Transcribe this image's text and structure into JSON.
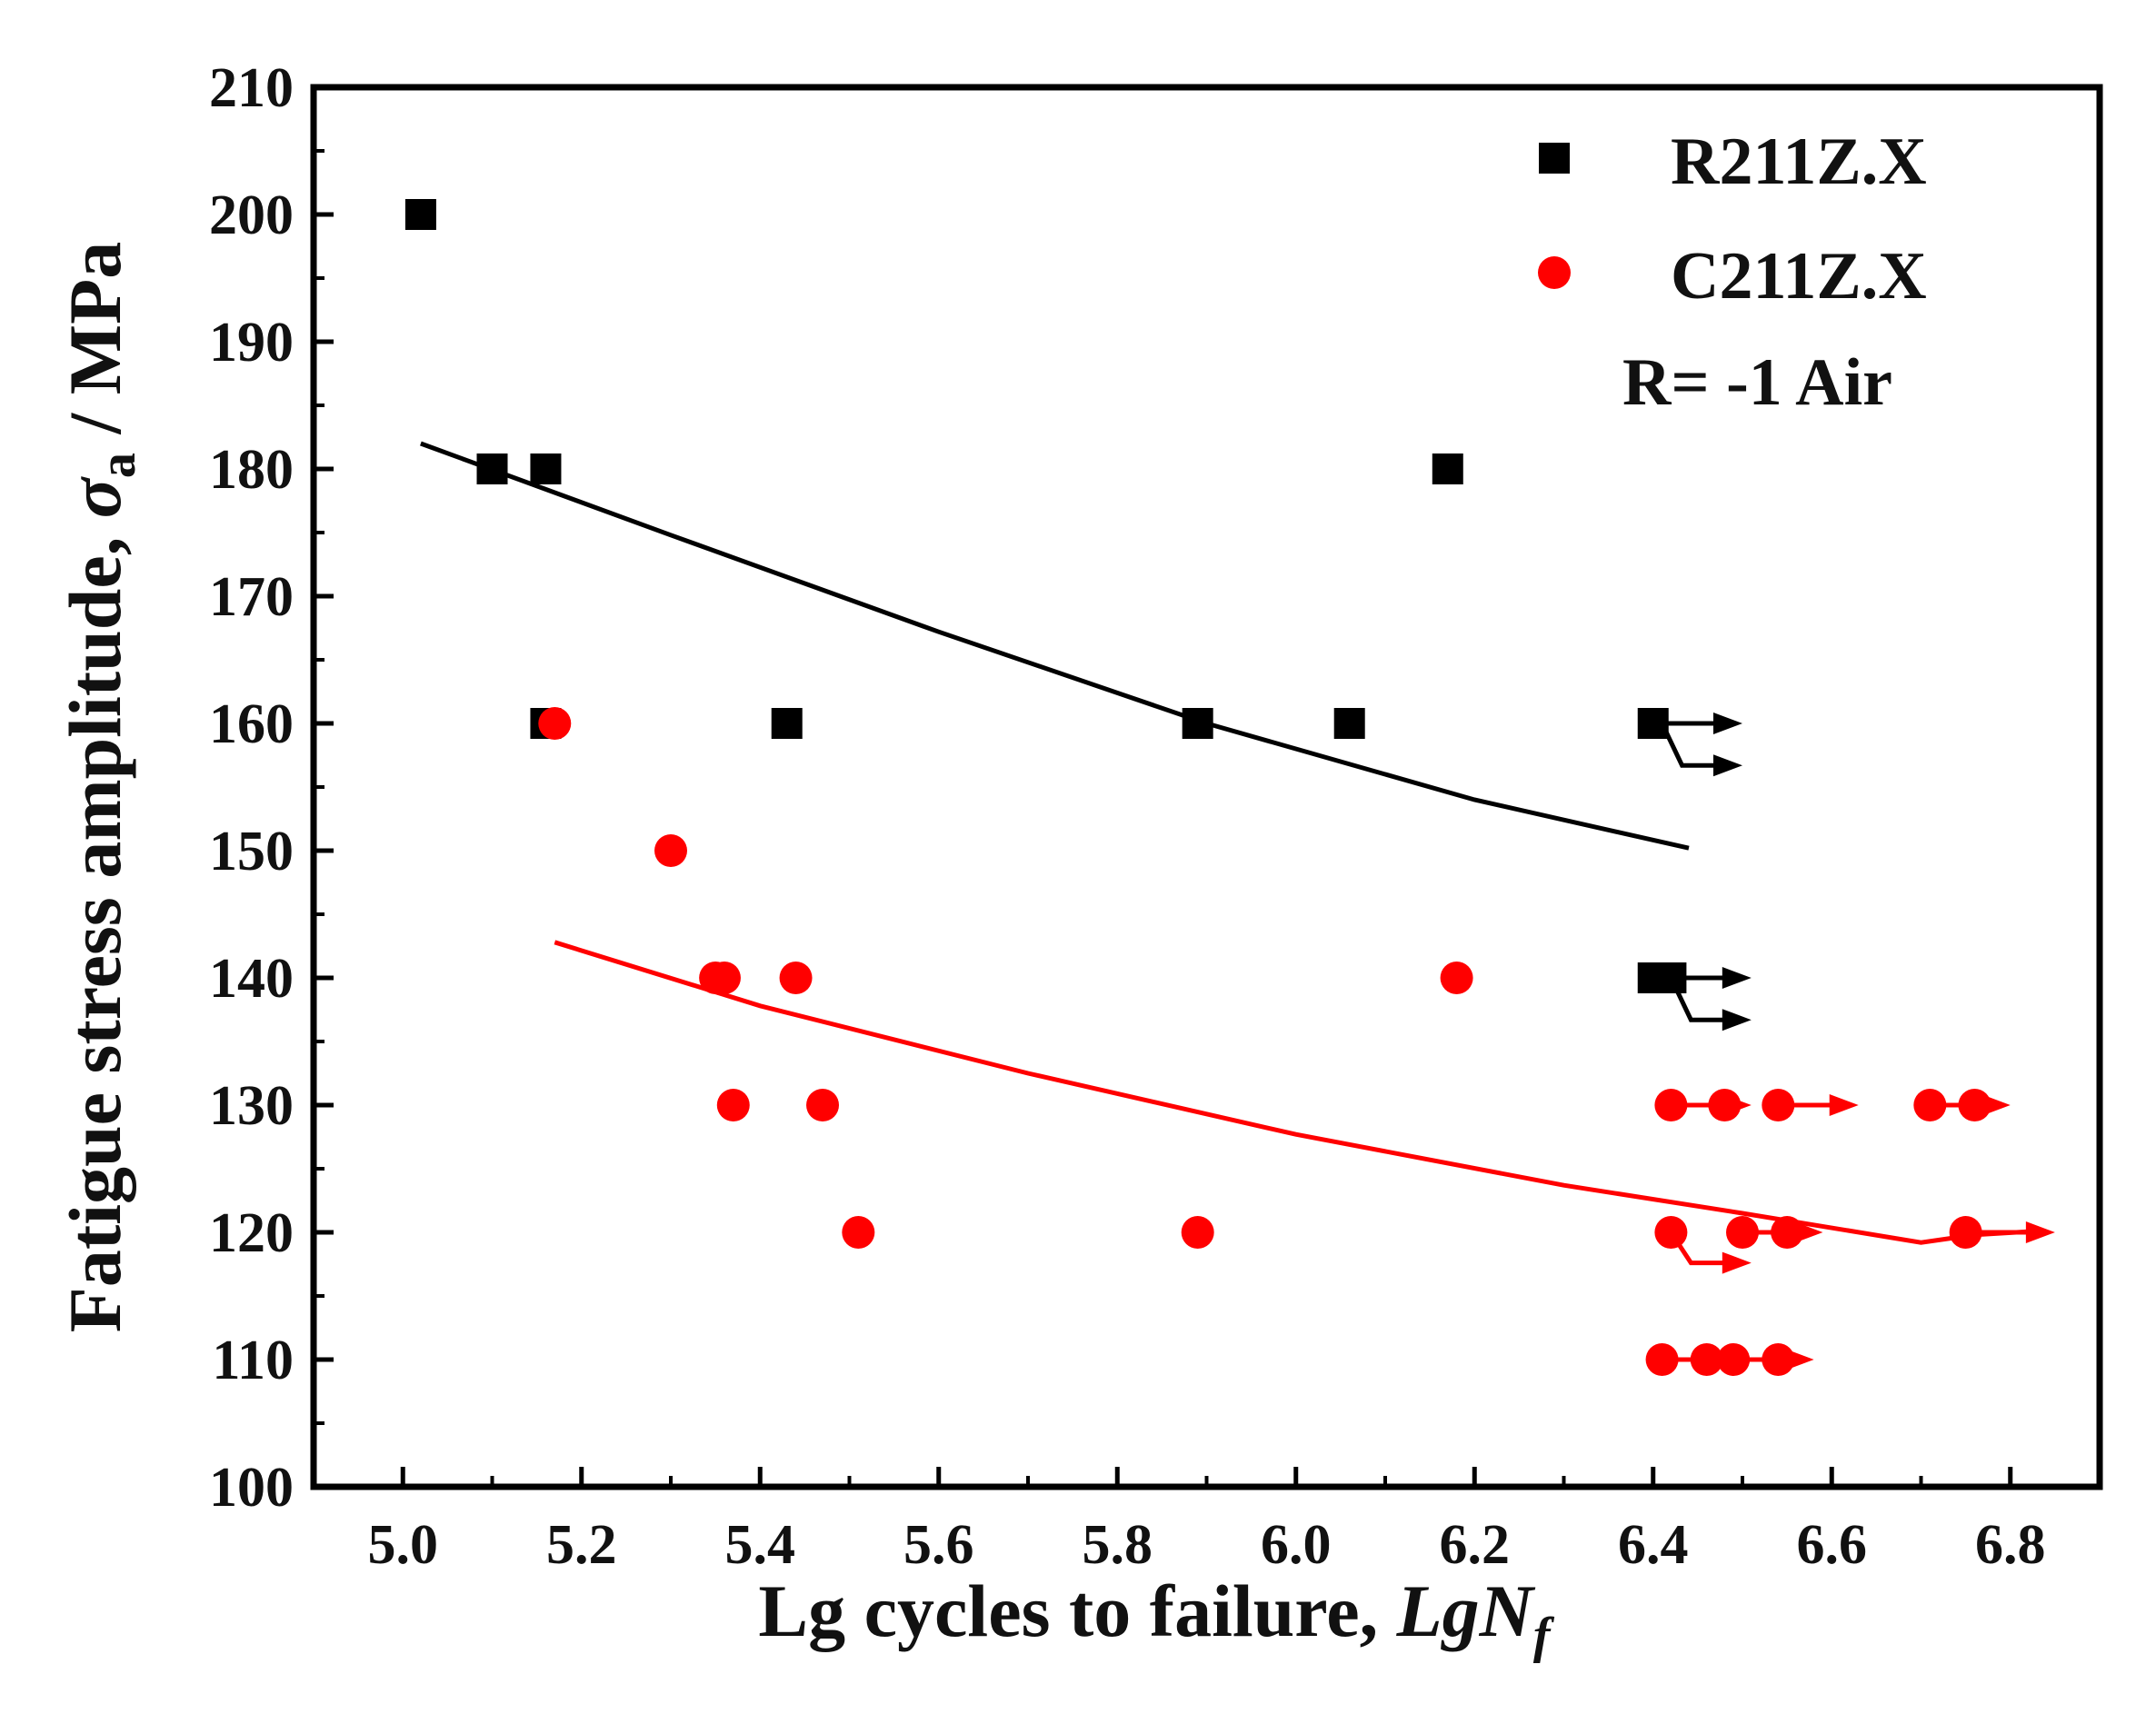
{
  "chart_data": {
    "type": "scatter",
    "xlim": [
      4.9,
      6.9
    ],
    "ylim": [
      100,
      210
    ],
    "x_ticks": [
      5.0,
      5.2,
      5.4,
      5.6,
      5.8,
      6.0,
      6.2,
      6.4,
      6.6,
      6.8
    ],
    "x_tick_labels": [
      "5.0",
      "5.2",
      "5.4",
      "5.6",
      "5.8",
      "6.0",
      "6.2",
      "6.4",
      "6.6",
      "6.8"
    ],
    "y_ticks": [
      100,
      110,
      120,
      130,
      140,
      150,
      160,
      170,
      180,
      190,
      200,
      210
    ],
    "y_tick_labels": [
      "100",
      "110",
      "120",
      "130",
      "140",
      "150",
      "160",
      "170",
      "180",
      "190",
      "200",
      "210"
    ],
    "xlabel": {
      "main": "Lg cycles to failure, ",
      "italic": "LgN",
      "sub": "f"
    },
    "ylabel": {
      "main": "Fatigue stress amplitude, ",
      "sym": "σ",
      "sub": "a",
      "tail": " / MPa"
    },
    "condition_label": "R= -1   Air",
    "grid": false,
    "legend_position": "top-right",
    "series": [
      {
        "name": "R211Z.X",
        "marker": "square",
        "color": "#000000",
        "points": [
          {
            "x": 5.02,
            "y": 200
          },
          {
            "x": 5.1,
            "y": 180
          },
          {
            "x": 5.16,
            "y": 180
          },
          {
            "x": 5.16,
            "y": 160
          },
          {
            "x": 5.43,
            "y": 160
          },
          {
            "x": 5.89,
            "y": 160
          },
          {
            "x": 6.06,
            "y": 160
          },
          {
            "x": 6.17,
            "y": 180
          },
          {
            "x": 6.4,
            "y": 160
          },
          {
            "x": 6.4,
            "y": 140
          },
          {
            "x": 6.42,
            "y": 140
          }
        ],
        "runouts": [
          {
            "x": 6.41,
            "y": 160,
            "x_end": 6.5,
            "y_end": 160
          },
          {
            "x": 6.41,
            "y": 160,
            "x_end": 6.5,
            "y_end": 156.7
          },
          {
            "x": 6.41,
            "y": 140,
            "x_end": 6.51,
            "y_end": 140
          },
          {
            "x": 6.42,
            "y": 140,
            "x_end": 6.51,
            "y_end": 136.7
          }
        ],
        "fit": {
          "x": [
            5.02,
            5.3,
            5.6,
            5.9,
            6.2,
            6.44
          ],
          "y": [
            182,
            174.8,
            167.2,
            160,
            154,
            150.2
          ]
        }
      },
      {
        "name": "C211Z.X",
        "marker": "circle",
        "color": "#ff0000",
        "points": [
          {
            "x": 5.17,
            "y": 160
          },
          {
            "x": 5.3,
            "y": 150
          },
          {
            "x": 5.35,
            "y": 140
          },
          {
            "x": 5.36,
            "y": 140
          },
          {
            "x": 5.44,
            "y": 140
          },
          {
            "x": 5.37,
            "y": 130
          },
          {
            "x": 5.47,
            "y": 130
          },
          {
            "x": 5.51,
            "y": 120
          },
          {
            "x": 5.89,
            "y": 120
          },
          {
            "x": 6.18,
            "y": 140
          },
          {
            "x": 6.42,
            "y": 130
          },
          {
            "x": 6.48,
            "y": 130
          },
          {
            "x": 6.54,
            "y": 130
          },
          {
            "x": 6.71,
            "y": 130
          },
          {
            "x": 6.76,
            "y": 130
          },
          {
            "x": 6.42,
            "y": 120
          },
          {
            "x": 6.5,
            "y": 120
          },
          {
            "x": 6.55,
            "y": 120
          },
          {
            "x": 6.75,
            "y": 120
          },
          {
            "x": 6.41,
            "y": 110
          },
          {
            "x": 6.46,
            "y": 110
          },
          {
            "x": 6.49,
            "y": 110
          },
          {
            "x": 6.54,
            "y": 110
          }
        ],
        "runouts": [
          {
            "x": 6.42,
            "y": 130,
            "x_end": 6.51,
            "y_end": 130
          },
          {
            "x": 6.54,
            "y": 130,
            "x_end": 6.63,
            "y_end": 130
          },
          {
            "x": 6.71,
            "y": 130,
            "x_end": 6.8,
            "y_end": 130
          },
          {
            "x": 6.5,
            "y": 120,
            "x_end": 6.59,
            "y_end": 120
          },
          {
            "x": 6.42,
            "y": 120,
            "x_end": 6.51,
            "y_end": 117.6
          },
          {
            "x": 6.76,
            "y": 120,
            "x_end": 6.85,
            "y_end": 120
          },
          {
            "x": 6.41,
            "y": 110,
            "x_end": 6.5,
            "y_end": 110
          },
          {
            "x": 6.49,
            "y": 110,
            "x_end": 6.58,
            "y_end": 110
          }
        ],
        "fit": {
          "x": [
            5.17,
            5.4,
            5.7,
            6.0,
            6.3,
            6.5,
            6.7,
            6.76,
            6.83
          ],
          "y": [
            142.8,
            137.8,
            132.5,
            127.7,
            123.7,
            121.5,
            119.2,
            119.8,
            120.1
          ]
        }
      }
    ]
  }
}
